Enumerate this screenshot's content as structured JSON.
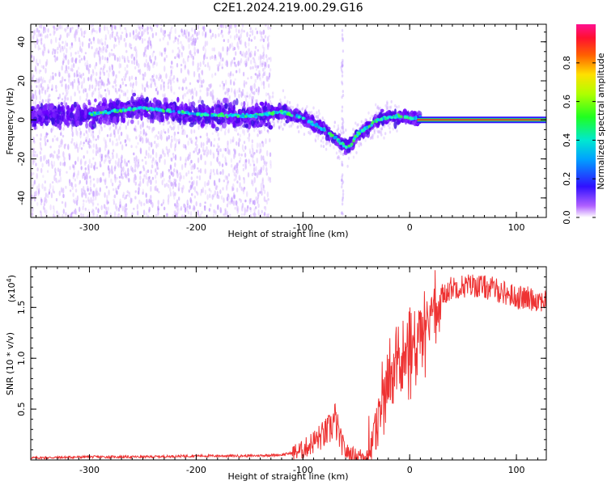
{
  "figure_title": "C2E1.2024.219.00.29.G16",
  "colors": {
    "snr_line": "#ee3333",
    "center_line": "#ff1a1a"
  },
  "chart_data": [
    {
      "type": "heatmap",
      "title": "",
      "xlabel": "Height of straight line (km)",
      "ylabel": "Frequency (Hz)",
      "xlim": [
        -355,
        128
      ],
      "ylim": [
        -50,
        49
      ],
      "x_ticks": [
        -300,
        -200,
        -100,
        0,
        100
      ],
      "y_ticks": [
        -40,
        -20,
        0,
        20,
        40
      ],
      "grid": false,
      "colormap": "rainbow",
      "colorbar": {
        "label": "Normalized spectral amplitude",
        "range": [
          0,
          1
        ],
        "ticks": [
          "0.0",
          "0.2",
          "0.4",
          "0.6",
          "0.8"
        ]
      },
      "ridge": {
        "x": [
          -355,
          -300,
          -250,
          -200,
          -150,
          -120,
          -100,
          -80,
          -70,
          -60,
          -55,
          -50,
          -40,
          -30,
          -20,
          -10,
          0,
          50,
          128
        ],
        "y": [
          2,
          3,
          6,
          3,
          2,
          4,
          1,
          -5,
          -9,
          -14,
          -13,
          -8,
          -4,
          0,
          1,
          2,
          1,
          0.5,
          0.3
        ]
      },
      "strong_segment_x": [
        10,
        128
      ],
      "strong_segment_y": 0
    },
    {
      "type": "line",
      "title": "",
      "xlabel": "Height of straight line (km)",
      "ylabel": "SNR (10 * v/v)",
      "y_multiplier": "(x10^4)",
      "y_multiplier_base": "(x10",
      "y_multiplier_exp": "4",
      "y_multiplier_close": ")",
      "xlim": [
        -355,
        128
      ],
      "ylim": [
        0,
        1.9
      ],
      "x_ticks": [
        -300,
        -200,
        -100,
        0,
        100
      ],
      "y_ticks": [
        "0.5",
        "1.0",
        "1.5"
      ],
      "grid": false,
      "series": [
        {
          "x": [
            -355,
            -300,
            -250,
            -200,
            -150,
            -120,
            -110,
            -100,
            -90,
            -80,
            -75,
            -70,
            -65,
            -60,
            -50,
            -40,
            -35,
            -30,
            -20,
            -10,
            0,
            10,
            20,
            30,
            40,
            60,
            80,
            100,
            128
          ],
          "y": [
            0.02,
            0.03,
            0.03,
            0.04,
            0.04,
            0.05,
            0.07,
            0.1,
            0.18,
            0.25,
            0.3,
            0.4,
            0.2,
            0.08,
            0.04,
            0.05,
            0.2,
            0.5,
            0.9,
            1.0,
            1.15,
            1.25,
            1.5,
            1.62,
            1.7,
            1.72,
            1.68,
            1.6,
            1.57
          ]
        }
      ]
    }
  ]
}
